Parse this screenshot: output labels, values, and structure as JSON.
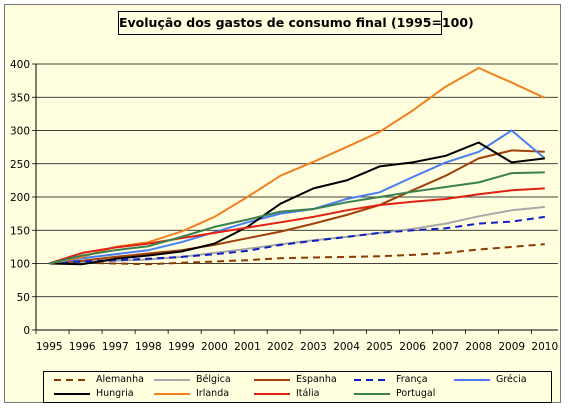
{
  "chart_data": {
    "type": "line",
    "title": "Evolução dos gastos de consumo final (1995=100)",
    "xlabel": "",
    "ylabel": "",
    "ylim": [
      0,
      400
    ],
    "yticks": [
      "0",
      "50",
      "100",
      "150",
      "200",
      "250",
      "300",
      "350",
      "400"
    ],
    "categories": [
      "1995",
      "1996",
      "1997",
      "1998",
      "1999",
      "2000",
      "2001",
      "2002",
      "2003",
      "2004",
      "2005",
      "2006",
      "2007",
      "2008",
      "2009",
      "2010"
    ],
    "grid": true,
    "legend_position": "bottom",
    "series": [
      {
        "name": "Alemanha",
        "color": "#8b3a00",
        "dash": true,
        "values": [
          100,
          101,
          100,
          99,
          101,
          103,
          105,
          108,
          109,
          110,
          111,
          113,
          116,
          121,
          125,
          129
        ]
      },
      {
        "name": "Bélgica",
        "color": "#a8a8a8",
        "dash": false,
        "values": [
          100,
          102,
          104,
          106,
          110,
          116,
          122,
          129,
          135,
          140,
          146,
          152,
          160,
          171,
          180,
          185
        ]
      },
      {
        "name": "Espanha",
        "color": "#a0400a",
        "dash": false,
        "values": [
          100,
          104,
          110,
          115,
          120,
          128,
          138,
          148,
          160,
          173,
          188,
          210,
          232,
          258,
          270,
          268
        ]
      },
      {
        "name": "França",
        "color": "#1020c0",
        "dash": true,
        "values": [
          100,
          103,
          105,
          107,
          110,
          114,
          119,
          128,
          134,
          140,
          146,
          150,
          153,
          160,
          163,
          170
        ]
      },
      {
        "name": "Grécia",
        "color": "#4a7ef0",
        "dash": false,
        "values": [
          100,
          108,
          114,
          120,
          132,
          147,
          162,
          175,
          182,
          197,
          207,
          230,
          252,
          268,
          300,
          258
        ]
      },
      {
        "name": "Hungria",
        "color": "#000000",
        "dash": false,
        "values": [
          100,
          99,
          107,
          112,
          118,
          130,
          155,
          190,
          213,
          225,
          246,
          252,
          262,
          282,
          252,
          258
        ]
      },
      {
        "name": "Irlanda",
        "color": "#f08020",
        "dash": false,
        "values": [
          100,
          110,
          125,
          132,
          148,
          170,
          200,
          232,
          253,
          275,
          298,
          330,
          366,
          394,
          372,
          349
        ]
      },
      {
        "name": "Itália",
        "color": "#e02010",
        "dash": false,
        "values": [
          100,
          116,
          124,
          130,
          138,
          146,
          154,
          162,
          170,
          180,
          188,
          193,
          197,
          204,
          210,
          213
        ]
      },
      {
        "name": "Portugal",
        "color": "#3a8050",
        "dash": false,
        "values": [
          100,
          112,
          120,
          126,
          140,
          155,
          166,
          178,
          182,
          192,
          200,
          208,
          215,
          222,
          236,
          237
        ]
      }
    ]
  }
}
